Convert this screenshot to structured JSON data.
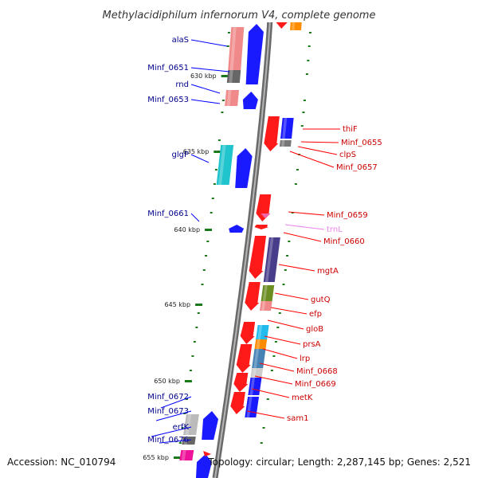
{
  "title": "Methylacidiphilum infernorum V4, complete genome",
  "footer": {
    "accession": "Accession: NC_010794",
    "topology": "Topology: circular; Length: 2,287,145 bp; Genes: 2,521"
  },
  "scale_ticks": [
    "630 kbp",
    "635 kbp",
    "640 kbp",
    "645 kbp",
    "650 kbp",
    "655 kbp"
  ],
  "colors": {
    "backbone": "#8a8a8a",
    "forward_label": "#00008b",
    "reverse_label": "#cc0000",
    "rna_label": "#ee82ee",
    "tick": "#1a7a1a"
  },
  "forward_genes": [
    {
      "label": "alaS",
      "color": "#0000ff"
    },
    {
      "label": "Minf_0651",
      "color": "#0000ff"
    },
    {
      "label": "rnd",
      "color": "#0000ff"
    },
    {
      "label": "Minf_0653",
      "color": "#0000ff"
    },
    {
      "label": "glgP",
      "color": "#0000ff"
    },
    {
      "label": "Minf_0661",
      "color": "#0000ff"
    },
    {
      "label": "Minf_0672",
      "color": "#0000ff"
    },
    {
      "label": "Minf_0673",
      "color": "#0000ff"
    },
    {
      "label": "erfK",
      "color": "#0000ff"
    },
    {
      "label": "Minf_0676",
      "color": "#0000ff"
    }
  ],
  "reverse_genes": [
    {
      "label": "thiF",
      "color": "#ff0000"
    },
    {
      "label": "Minf_0655",
      "color": "#ff0000"
    },
    {
      "label": "clpS",
      "color": "#ff0000"
    },
    {
      "label": "Minf_0657",
      "color": "#ff0000"
    },
    {
      "label": "Minf_0659",
      "color": "#ff0000"
    },
    {
      "label": "trnL",
      "color": "#ee82ee"
    },
    {
      "label": "Minf_0660",
      "color": "#ff0000"
    },
    {
      "label": "mgtA",
      "color": "#ff0000"
    },
    {
      "label": "gutQ",
      "color": "#ff0000"
    },
    {
      "label": "efp",
      "color": "#ff0000"
    },
    {
      "label": "gloB",
      "color": "#ff0000"
    },
    {
      "label": "prsA",
      "color": "#ff0000"
    },
    {
      "label": "lrp",
      "color": "#ff0000"
    },
    {
      "label": "Minf_0668",
      "color": "#ff0000"
    },
    {
      "label": "Minf_0669",
      "color": "#ff0000"
    },
    {
      "label": "metK",
      "color": "#ff0000"
    },
    {
      "label": "sam1",
      "color": "#ff0000"
    }
  ]
}
